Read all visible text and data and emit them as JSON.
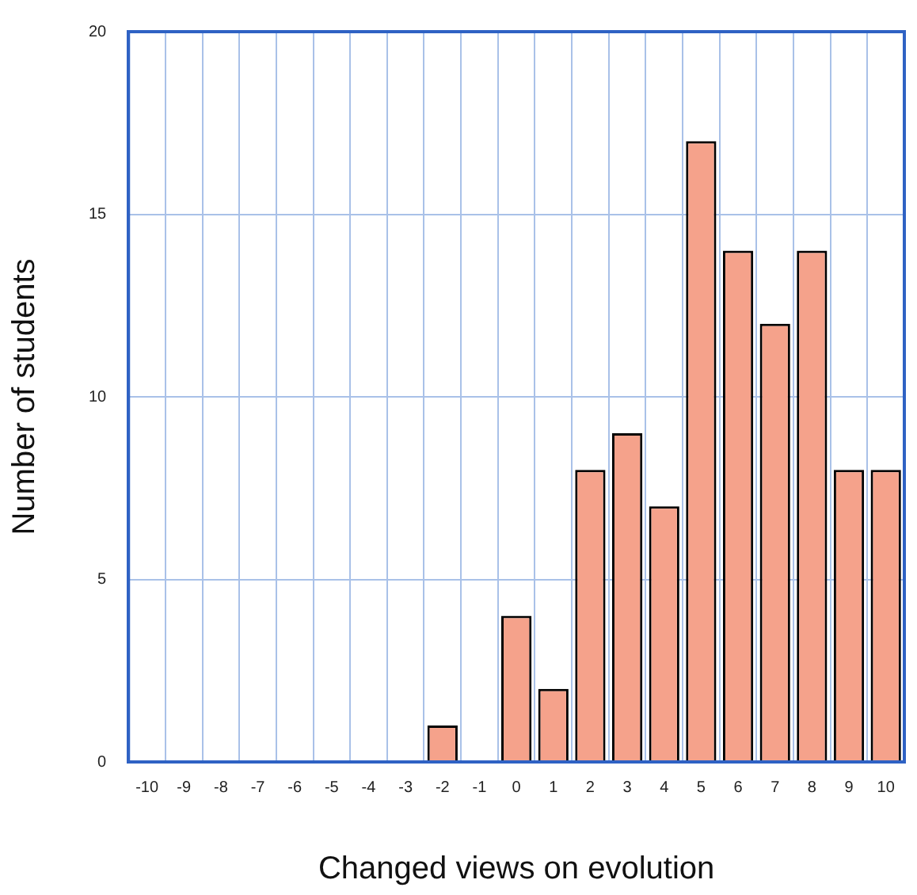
{
  "chart_data": {
    "type": "bar",
    "xlabel": "Changed views on evolution",
    "ylabel": "Number of students",
    "categories": [
      "-10",
      "-9",
      "-8",
      "-7",
      "-6",
      "-5",
      "-4",
      "-3",
      "-2",
      "-1",
      "0",
      "1",
      "2",
      "3",
      "4",
      "5",
      "6",
      "7",
      "8",
      "9",
      "10"
    ],
    "values": [
      0,
      0,
      0,
      0,
      0,
      0,
      0,
      0,
      1,
      0,
      4,
      2,
      8,
      9,
      7,
      17,
      14,
      12,
      14,
      8,
      8
    ],
    "color": "#f5a28b",
    "ylim": [
      0,
      20
    ],
    "yticks": [
      0,
      5,
      10,
      15,
      20
    ],
    "grid": true,
    "legend": false
  }
}
